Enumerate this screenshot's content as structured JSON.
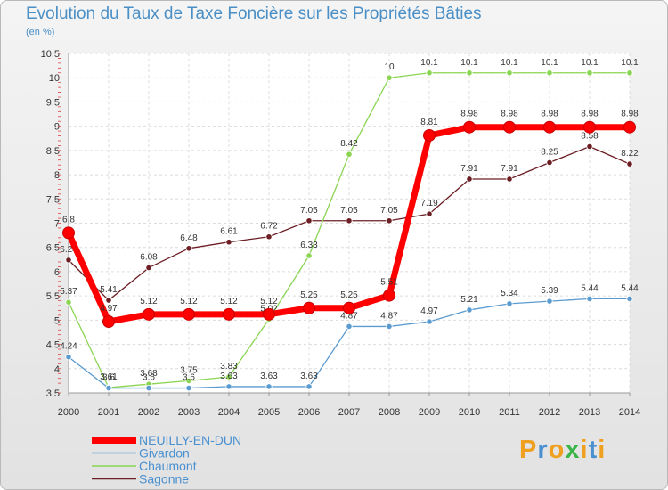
{
  "chart_data": {
    "type": "line",
    "title": "Evolution du Taux de Taxe Foncière sur les Propriétés Bâties",
    "unit_label": "(en %)",
    "x": [
      "2000",
      "2001",
      "2002",
      "2003",
      "2004",
      "2005",
      "2006",
      "2007",
      "2008",
      "2009",
      "2010",
      "2011",
      "2012",
      "2013",
      "2014"
    ],
    "ylim": [
      3.5,
      10.5
    ],
    "yticks": [
      "3.5",
      "4",
      "4.5",
      "5",
      "5.5",
      "6",
      "6.5",
      "7",
      "7.5",
      "8",
      "8.5",
      "9",
      "9.5",
      "10",
      "10.5"
    ],
    "series": [
      {
        "name": "Sagonne",
        "color": "#6b1e24",
        "values": [
          6.24,
          5.41,
          6.08,
          6.48,
          6.61,
          6.72,
          7.05,
          7.05,
          7.05,
          7.19,
          7.91,
          7.91,
          8.25,
          8.58,
          8.22
        ],
        "labels": [
          "6.24",
          "5.41",
          "6.08",
          "6.48",
          "6.61",
          "6.72",
          "7.05",
          "7.05",
          "7.05",
          "7.19",
          "7.91",
          "7.91",
          "8.25",
          "8.58",
          "8.22"
        ]
      },
      {
        "name": "Chaumont",
        "color": "#8bd552",
        "values": [
          5.37,
          3.61,
          3.68,
          3.75,
          3.83,
          5.02,
          6.33,
          8.42,
          10,
          10.1,
          10.1,
          10.1,
          10.1,
          10.1,
          10.1
        ],
        "labels": [
          "5.37",
          "3.61",
          "3.68",
          "3.75",
          "3.83",
          "5.02",
          "6.33",
          "8.42",
          "10",
          "10.1",
          "10.1",
          "10.1",
          "10.1",
          "10.1",
          "10.1"
        ]
      },
      {
        "name": "Givardon",
        "color": "#5b9bd0",
        "values": [
          4.24,
          3.6,
          3.6,
          3.6,
          3.63,
          3.63,
          3.63,
          4.87,
          4.87,
          4.97,
          5.21,
          5.34,
          5.39,
          5.44,
          5.44
        ],
        "labels": [
          "4.24",
          "3.6",
          "3.6",
          "3.6",
          "3.63",
          "3.63",
          "3.63",
          "4.87",
          "4.87",
          "4.97",
          "5.21",
          "5.34",
          "5.39",
          "5.44",
          "5.44"
        ]
      },
      {
        "name": "NEUILLY-EN-DUN",
        "color": "#ff0000",
        "values": [
          6.8,
          4.97,
          5.12,
          5.12,
          5.12,
          5.12,
          5.25,
          5.25,
          5.51,
          8.81,
          8.98,
          8.98,
          8.98,
          8.98,
          8.98
        ],
        "labels": [
          "6.8",
          "4.97",
          "5.12",
          "5.12",
          "5.12",
          "5.12",
          "5.25",
          "5.25",
          "5.51",
          "8.81",
          "8.98",
          "8.98",
          "8.98",
          "8.98",
          "8.98"
        ]
      }
    ],
    "legend": [
      "NEUILLY-EN-DUN",
      "Givardon",
      "Chaumont",
      "Sagonne"
    ],
    "legend_position": "bottom-left"
  },
  "logo": {
    "letters": [
      "P",
      "r",
      "o",
      "x",
      "i",
      "t",
      "i"
    ],
    "colors": [
      "#f0a020",
      "#4a90d0",
      "#f0a020",
      "#3ab54a",
      "#f0a020",
      "#4a90d0",
      "#f0a020"
    ]
  }
}
